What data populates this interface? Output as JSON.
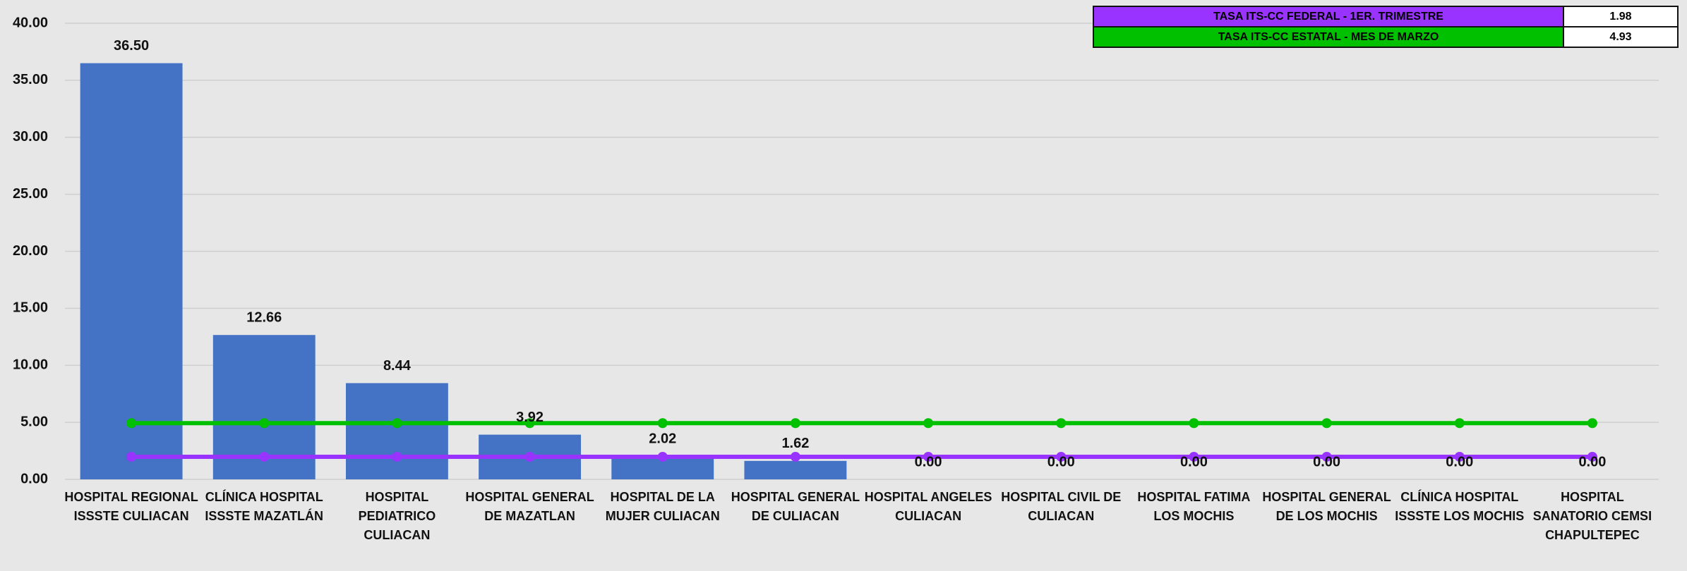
{
  "chart_data": {
    "type": "bar",
    "categories": [
      "HOSPITAL REGIONAL ISSSTE CULIACAN",
      "CLÍNICA HOSPITAL ISSSTE MAZATLÁN",
      "HOSPITAL PEDIATRICO CULIACAN",
      "HOSPITAL GENERAL DE MAZATLAN",
      "HOSPITAL DE LA MUJER CULIACAN",
      "HOSPITAL GENERAL DE CULIACAN",
      "HOSPITAL ANGELES CULIACAN",
      "HOSPITAL CIVIL DE CULIACAN",
      "HOSPITAL FATIMA LOS MOCHIS",
      "HOSPITAL GENERAL DE LOS MOCHIS",
      "CLÍNICA HOSPITAL ISSSTE LOS MOCHIS",
      "HOSPITAL SANATORIO CEMSI CHAPULTEPEC"
    ],
    "values": [
      36.5,
      12.66,
      8.44,
      3.92,
      2.02,
      1.62,
      0,
      0,
      0,
      0,
      0,
      0
    ],
    "value_labels": [
      "36.50",
      "12.66",
      "8.44",
      "3.92",
      "2.02",
      "1.62",
      "0.00",
      "0.00",
      "0.00",
      "0.00",
      "0.00",
      "0.00"
    ],
    "color": "#4472c4",
    "series": [
      {
        "name": "TASA ITS-CC FEDERAL - 1ER. TRIMESTRE",
        "color": "#9933ff",
        "values": [
          1.98,
          1.98,
          1.98,
          1.98,
          1.98,
          1.98,
          1.98,
          1.98,
          1.98,
          1.98,
          1.98,
          1.98
        ]
      },
      {
        "name": "TASA ITS-CC ESTATAL - MES DE MARZO",
        "color": "#00c000",
        "values": [
          4.93,
          4.93,
          4.93,
          4.93,
          4.93,
          4.93,
          4.93,
          4.93,
          4.93,
          4.93,
          4.93,
          4.93
        ]
      }
    ],
    "ylim": [
      0,
      40
    ],
    "yticks": [
      {
        "value": 0,
        "label": "0.00"
      },
      {
        "value": 5,
        "label": "5.00"
      },
      {
        "value": 10,
        "label": "10.00"
      },
      {
        "value": 15,
        "label": "15.00"
      },
      {
        "value": 20,
        "label": "20.00"
      },
      {
        "value": 25,
        "label": "25.00"
      },
      {
        "value": 30,
        "label": "30.00"
      },
      {
        "value": 35,
        "label": "35.00"
      },
      {
        "value": 40,
        "label": "40.00"
      }
    ],
    "grid": true
  }
}
